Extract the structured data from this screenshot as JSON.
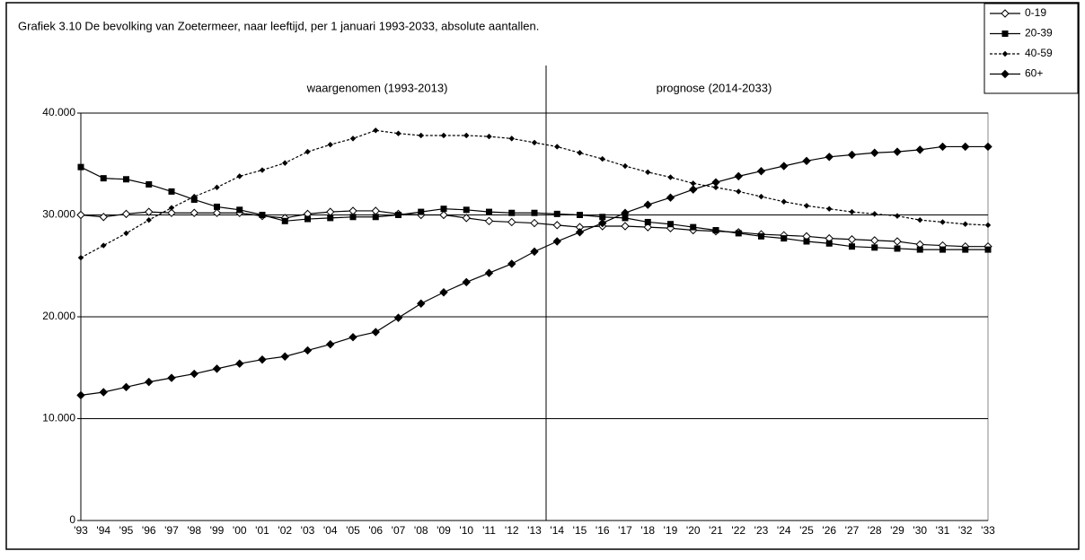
{
  "chart_data": {
    "type": "line",
    "title": "Grafiek 3.10 De bevolking  van Zoetermeer,  naar leeftijd,  per 1 januari  1993-2033,  absolute  aantallen.",
    "annotations": [
      "waargenomen  (1993-2013)",
      "prognose  (2014-2033)"
    ],
    "categories": [
      "'93",
      "'94",
      "'95",
      "'96",
      "'97",
      "'98",
      "'99",
      "'00",
      "'01",
      "'02",
      "'03",
      "'04",
      "'05",
      "'06",
      "'07",
      "'08",
      "'09",
      "'10",
      "'11",
      "'12",
      "'13",
      "'14",
      "'15",
      "'16",
      "'17",
      "'18",
      "'19",
      "'20",
      "'21",
      "'22",
      "'23",
      "'24",
      "'25",
      "'26",
      "'27",
      "'28",
      "'29",
      "'30",
      "'31",
      "'32",
      "'33"
    ],
    "series": [
      {
        "name": "0-19",
        "color": "#000000",
        "marker": "diamond-open",
        "dashed": false,
        "values": [
          30000,
          29800,
          30100,
          30300,
          30200,
          30200,
          30200,
          30200,
          29900,
          29700,
          30100,
          30300,
          30400,
          30400,
          30100,
          30000,
          30000,
          29700,
          29400,
          29300,
          29200,
          29000,
          28800,
          28900,
          28900,
          28800,
          28700,
          28500,
          28400,
          28300,
          28100,
          28000,
          27900,
          27700,
          27600,
          27500,
          27400,
          27100,
          27000,
          26900,
          26900
        ]
      },
      {
        "name": "20-39",
        "color": "#000000",
        "marker": "square",
        "dashed": false,
        "values": [
          34700,
          33600,
          33500,
          33000,
          32300,
          31500,
          30800,
          30500,
          30000,
          29400,
          29600,
          29700,
          29800,
          29800,
          30000,
          30300,
          30600,
          30500,
          30300,
          30200,
          30200,
          30100,
          30000,
          29800,
          29700,
          29300,
          29100,
          28800,
          28500,
          28200,
          27900,
          27700,
          27400,
          27200,
          26900,
          26800,
          26700,
          26600,
          26600,
          26600,
          26600
        ]
      },
      {
        "name": "40-59",
        "color": "#000000",
        "marker": "diamond-small",
        "dashed": true,
        "values": [
          25800,
          27000,
          28200,
          29500,
          30700,
          31800,
          32700,
          33800,
          34400,
          35100,
          36200,
          36900,
          37500,
          38300,
          38000,
          37800,
          37800,
          37800,
          37700,
          37500,
          37100,
          36700,
          36100,
          35500,
          34800,
          34200,
          33700,
          33100,
          32700,
          32300,
          31800,
          31300,
          30900,
          30600,
          30300,
          30100,
          29900,
          29500,
          29300,
          29100,
          29000
        ]
      },
      {
        "name": "60+",
        "color": "#000000",
        "marker": "diamond",
        "dashed": false,
        "values": [
          12300,
          12600,
          13100,
          13600,
          14000,
          14400,
          14900,
          15400,
          15800,
          16100,
          16700,
          17300,
          18000,
          18500,
          19900,
          21300,
          22400,
          23400,
          24300,
          25200,
          26400,
          27400,
          28300,
          29200,
          30200,
          31000,
          31700,
          32500,
          33200,
          33800,
          34300,
          34800,
          35300,
          35700,
          35900,
          36100,
          36200,
          36400,
          36700,
          36700,
          36700
        ]
      }
    ],
    "ylim": [
      0,
      40000
    ],
    "yticks": [
      0,
      {
        "value": 10000,
        "label": "10.000"
      },
      {
        "value": 20000,
        "label": "20.000"
      },
      {
        "value": 30000,
        "label": "30.000"
      },
      {
        "value": 40000,
        "label": "40.000"
      }
    ],
    "grid": true,
    "legend": "top-right"
  }
}
